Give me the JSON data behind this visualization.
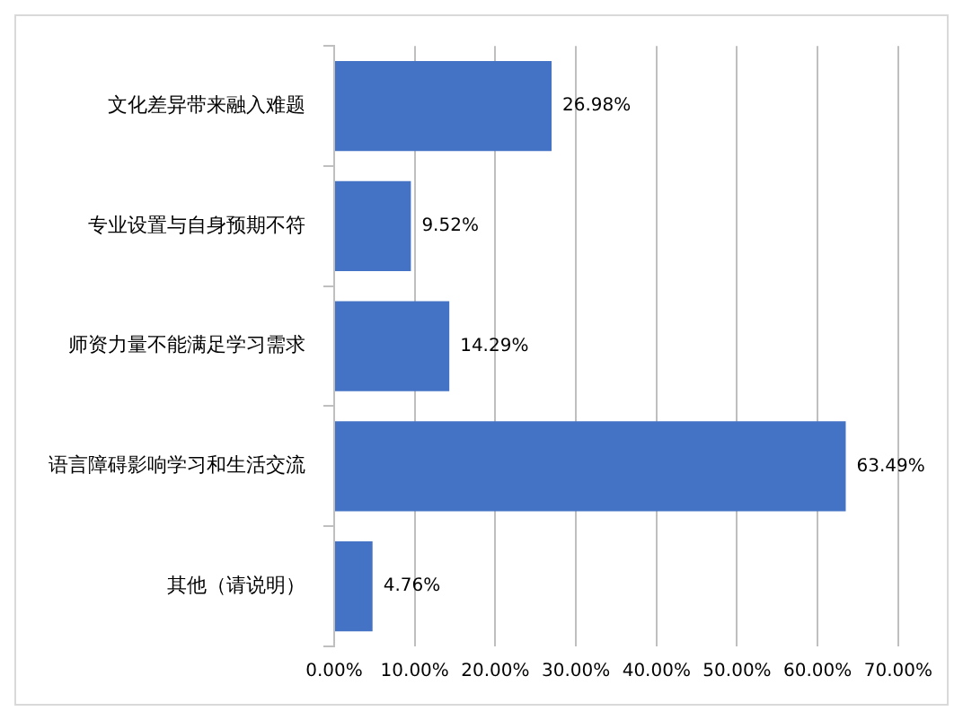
{
  "chart_data": {
    "type": "bar",
    "orientation": "horizontal",
    "categories": [
      "文化差异带来融入难题",
      "专业设置与自身预期不符",
      "师资力量不能满足学习需求",
      "语言障碍影响学习和生活交流",
      "其他（请说明）"
    ],
    "values": [
      26.98,
      9.52,
      14.29,
      63.49,
      4.76
    ],
    "value_labels": [
      "26.98%",
      "9.52%",
      "14.29%",
      "63.49%",
      "4.76%"
    ],
    "color": "#4472c4",
    "xlim": [
      0,
      70
    ],
    "xticks": [
      {
        "value": 0,
        "label": "0.00%"
      },
      {
        "value": 10,
        "label": "10.00%"
      },
      {
        "value": 20,
        "label": "20.00%"
      },
      {
        "value": 30,
        "label": "30.00%"
      },
      {
        "value": 40,
        "label": "40.00%"
      },
      {
        "value": 50,
        "label": "50.00%"
      },
      {
        "value": 60,
        "label": "60.00%"
      },
      {
        "value": 70,
        "label": "70.00%"
      }
    ],
    "grid": "x",
    "legend": false
  }
}
